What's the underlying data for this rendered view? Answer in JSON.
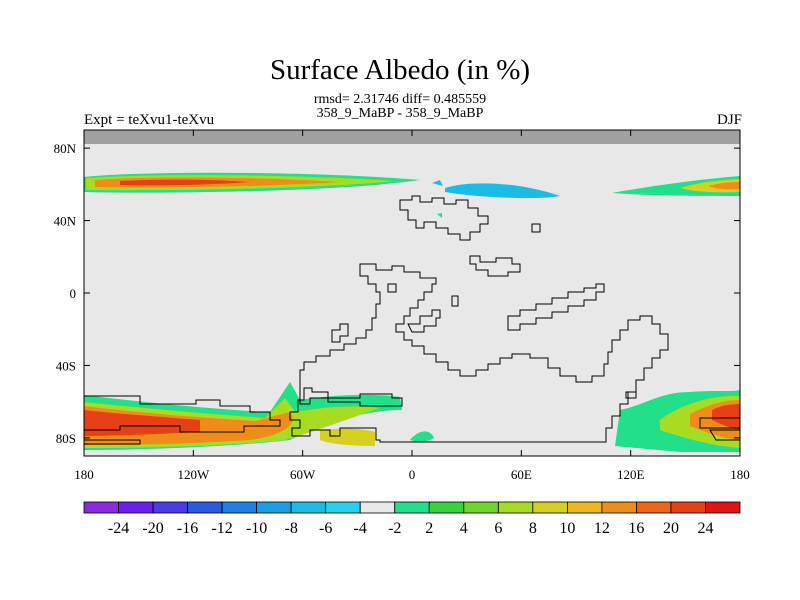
{
  "map": {
    "title": "Surface Albedo (in %)",
    "stats": "rmsd= 2.31746 diff= 0.485559",
    "subtitle": "358_9_MaBP - 358_9_MaBP",
    "left_label": "Expt = teXvu1-teXvu",
    "right_label": "DJF",
    "projection": "cylindrical-equidistant",
    "lon_range": [
      -180,
      180
    ],
    "lat_range": [
      -90,
      90
    ],
    "x_ticks": [
      {
        "value": -180,
        "label": "180"
      },
      {
        "value": -120,
        "label": "120W"
      },
      {
        "value": -60,
        "label": "60W"
      },
      {
        "value": 0,
        "label": "0"
      },
      {
        "value": 60,
        "label": "60E"
      },
      {
        "value": 120,
        "label": "120E"
      },
      {
        "value": 180,
        "label": "180"
      }
    ],
    "y_ticks": [
      {
        "value": 80,
        "label": "80N"
      },
      {
        "value": 40,
        "label": "40N"
      },
      {
        "value": 0,
        "label": "0"
      },
      {
        "value": -40,
        "label": "40S"
      },
      {
        "value": -80,
        "label": "80S"
      }
    ],
    "colors": {
      "background_field": "#e8e8e8",
      "missing_band": "#a0a0a0",
      "coastline": "#000000"
    }
  },
  "colorbar": {
    "colors": [
      "#8a2be2",
      "#6a1ff0",
      "#4a3ae8",
      "#2a5ae0",
      "#1e80e6",
      "#1a9ee8",
      "#1abce6",
      "#26d0ee",
      "#e8e8e8",
      "#22e08a",
      "#3ad23a",
      "#6ed82a",
      "#a8dc22",
      "#d8d020",
      "#f0b41e",
      "#f08c1a",
      "#ee6418",
      "#e84016",
      "#e01414"
    ],
    "labels": [
      "-24",
      "-20",
      "-16",
      "-12",
      "-10",
      "-8",
      "-6",
      "-4",
      "-2",
      "2",
      "4",
      "6",
      "8",
      "10",
      "12",
      "16",
      "20",
      "24"
    ]
  }
}
